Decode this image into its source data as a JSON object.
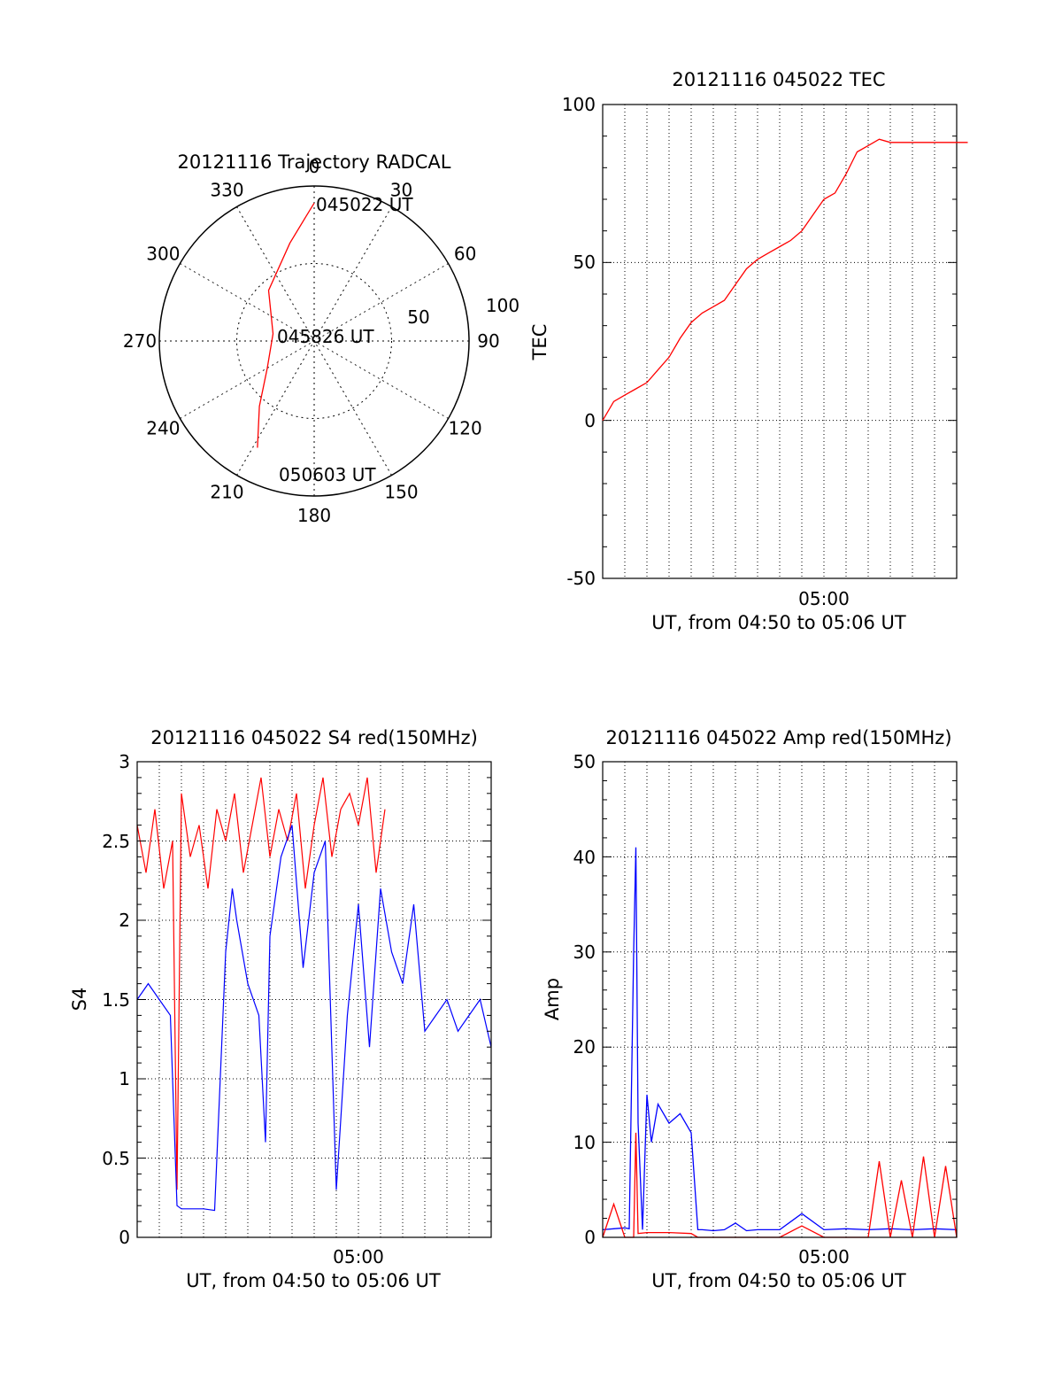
{
  "chart_data": [
    {
      "id": "trajectory",
      "type": "polar",
      "title": "20121116 Trajectory RADCAL",
      "angle_labels": [
        "0",
        "30",
        "60",
        "90",
        "120",
        "150",
        "180",
        "210",
        "240",
        "270",
        "300",
        "330"
      ],
      "radial_labels": [
        "50",
        "100"
      ],
      "rlim": [
        0,
        100
      ],
      "grid": true,
      "annotations": [
        "045022 UT",
        "045826 UT",
        "050603 UT"
      ],
      "color": "#ff0000",
      "points": [
        {
          "az": 0,
          "r": 89
        },
        {
          "az": 356,
          "r": 80
        },
        {
          "az": 346,
          "r": 65
        },
        {
          "az": 318,
          "r": 44
        },
        {
          "az": 280,
          "r": 27
        },
        {
          "az": 240,
          "r": 35
        },
        {
          "az": 220,
          "r": 55
        },
        {
          "az": 208,
          "r": 78
        }
      ]
    },
    {
      "id": "tec",
      "type": "line",
      "title": "20121116 045022 TEC",
      "xlabel": "UT, from 04:50 to 05:06 UT",
      "ylabel": "TEC",
      "ylim": [
        -50,
        100
      ],
      "yticks": [
        "-50",
        "0",
        "50",
        "100"
      ],
      "xtick_labels": [
        "05:00"
      ],
      "grid": true,
      "series": [
        {
          "color": "#ff0000",
          "x": [
            0,
            0.5,
            1,
            1.5,
            2,
            2.5,
            3,
            3.5,
            4,
            4.5,
            5,
            5.5,
            6,
            6.5,
            7,
            7.5,
            8,
            8.5,
            9,
            9.5,
            10,
            10.5,
            11,
            11.5,
            12,
            12.5,
            13,
            13.5,
            14,
            14.5,
            15,
            15.5,
            16,
            16.5
          ],
          "y": [
            0,
            6,
            8,
            10,
            12,
            16,
            20,
            26,
            31,
            34,
            36,
            38,
            43,
            48,
            51,
            53,
            55,
            57,
            60,
            65,
            70,
            72,
            78,
            85,
            87,
            89,
            88,
            88,
            88,
            88,
            88,
            88,
            88,
            88
          ]
        }
      ]
    },
    {
      "id": "s4",
      "type": "line",
      "title": "20121116 045022 S4 red(150MHz)",
      "xlabel": "UT, from 04:50 to 05:06 UT",
      "ylabel": "S4",
      "ylim": [
        0,
        3
      ],
      "yticks": [
        "0",
        "0.5",
        "1",
        "1.5",
        "2",
        "2.5",
        "3"
      ],
      "xtick_labels": [
        "05:00"
      ],
      "grid": true,
      "series": [
        {
          "color": "#0000ff",
          "x": [
            0,
            0.5,
            1,
            1.5,
            1.8,
            2,
            2.5,
            3,
            3.5,
            4,
            4.3,
            4.5,
            5,
            5.5,
            5.8,
            6,
            6.5,
            7,
            7.5,
            8,
            8.5,
            9,
            9.5,
            10,
            10.5,
            11,
            11.5,
            12,
            12.5,
            13,
            13.5,
            14,
            14.5,
            15,
            15.5,
            16
          ],
          "y": [
            1.5,
            1.6,
            1.5,
            1.4,
            0.2,
            0.18,
            0.18,
            0.18,
            0.17,
            1.8,
            2.2,
            2.0,
            1.6,
            1.4,
            0.6,
            1.9,
            2.4,
            2.6,
            1.7,
            2.3,
            2.5,
            0.3,
            1.4,
            2.1,
            1.2,
            2.2,
            1.8,
            1.6,
            2.1,
            1.3,
            1.4,
            1.5,
            1.3,
            1.4,
            1.5,
            1.2
          ]
        },
        {
          "color": "#ff0000",
          "x": [
            0,
            0.4,
            0.8,
            1.2,
            1.6,
            1.8,
            2,
            2.4,
            2.8,
            3.2,
            3.6,
            4,
            4.4,
            4.8,
            5.2,
            5.6,
            6,
            6.4,
            6.8,
            7.2,
            7.6,
            8,
            8.4,
            8.8,
            9.2,
            9.6,
            10,
            10.4,
            10.8,
            11.2
          ],
          "y": [
            2.6,
            2.3,
            2.7,
            2.2,
            2.5,
            0.3,
            2.8,
            2.4,
            2.6,
            2.2,
            2.7,
            2.5,
            2.8,
            2.3,
            2.6,
            2.9,
            2.4,
            2.7,
            2.5,
            2.8,
            2.2,
            2.6,
            2.9,
            2.4,
            2.7,
            2.8,
            2.6,
            2.9,
            2.3,
            2.7
          ]
        }
      ]
    },
    {
      "id": "amp",
      "type": "line",
      "title": "20121116 045022 Amp red(150MHz)",
      "xlabel": "UT, from 04:50 to 05:06 UT",
      "ylabel": "Amp",
      "ylim": [
        0,
        50
      ],
      "yticks": [
        "0",
        "10",
        "20",
        "30",
        "40",
        "50"
      ],
      "xtick_labels": [
        "05:00"
      ],
      "grid": true,
      "series": [
        {
          "color": "#0000ff",
          "x": [
            0,
            0.5,
            1,
            1.2,
            1.4,
            1.5,
            1.6,
            1.8,
            2,
            2.2,
            2.5,
            3,
            3.5,
            4,
            4.3,
            4.5,
            5,
            5.5,
            6,
            6.5,
            7,
            7.5,
            8,
            9,
            10,
            11,
            12,
            13,
            14,
            15,
            16
          ],
          "y": [
            0.8,
            0.9,
            1,
            0.9,
            30,
            41,
            12,
            0.8,
            15,
            10,
            14,
            12,
            13,
            11,
            0.8,
            0.8,
            0.7,
            0.8,
            1.5,
            0.7,
            0.8,
            0.8,
            0.8,
            2.5,
            0.8,
            0.9,
            0.8,
            0.9,
            0.8,
            0.9,
            0.8
          ]
        },
        {
          "color": "#ff0000",
          "x": [
            0,
            0.5,
            1,
            1.4,
            1.5,
            1.6,
            2,
            3,
            4,
            4.3,
            5,
            6,
            7,
            8,
            9,
            10,
            11,
            12,
            12.5,
            13,
            13.5,
            14,
            14.5,
            15,
            15.5,
            16
          ],
          "y": [
            0,
            3.5,
            0,
            0,
            11,
            0.4,
            0.5,
            0.5,
            0.4,
            0,
            0,
            0,
            0,
            0,
            1.2,
            0,
            0,
            0,
            8,
            0,
            6,
            0,
            8.5,
            0,
            7.5,
            0
          ]
        }
      ]
    }
  ]
}
